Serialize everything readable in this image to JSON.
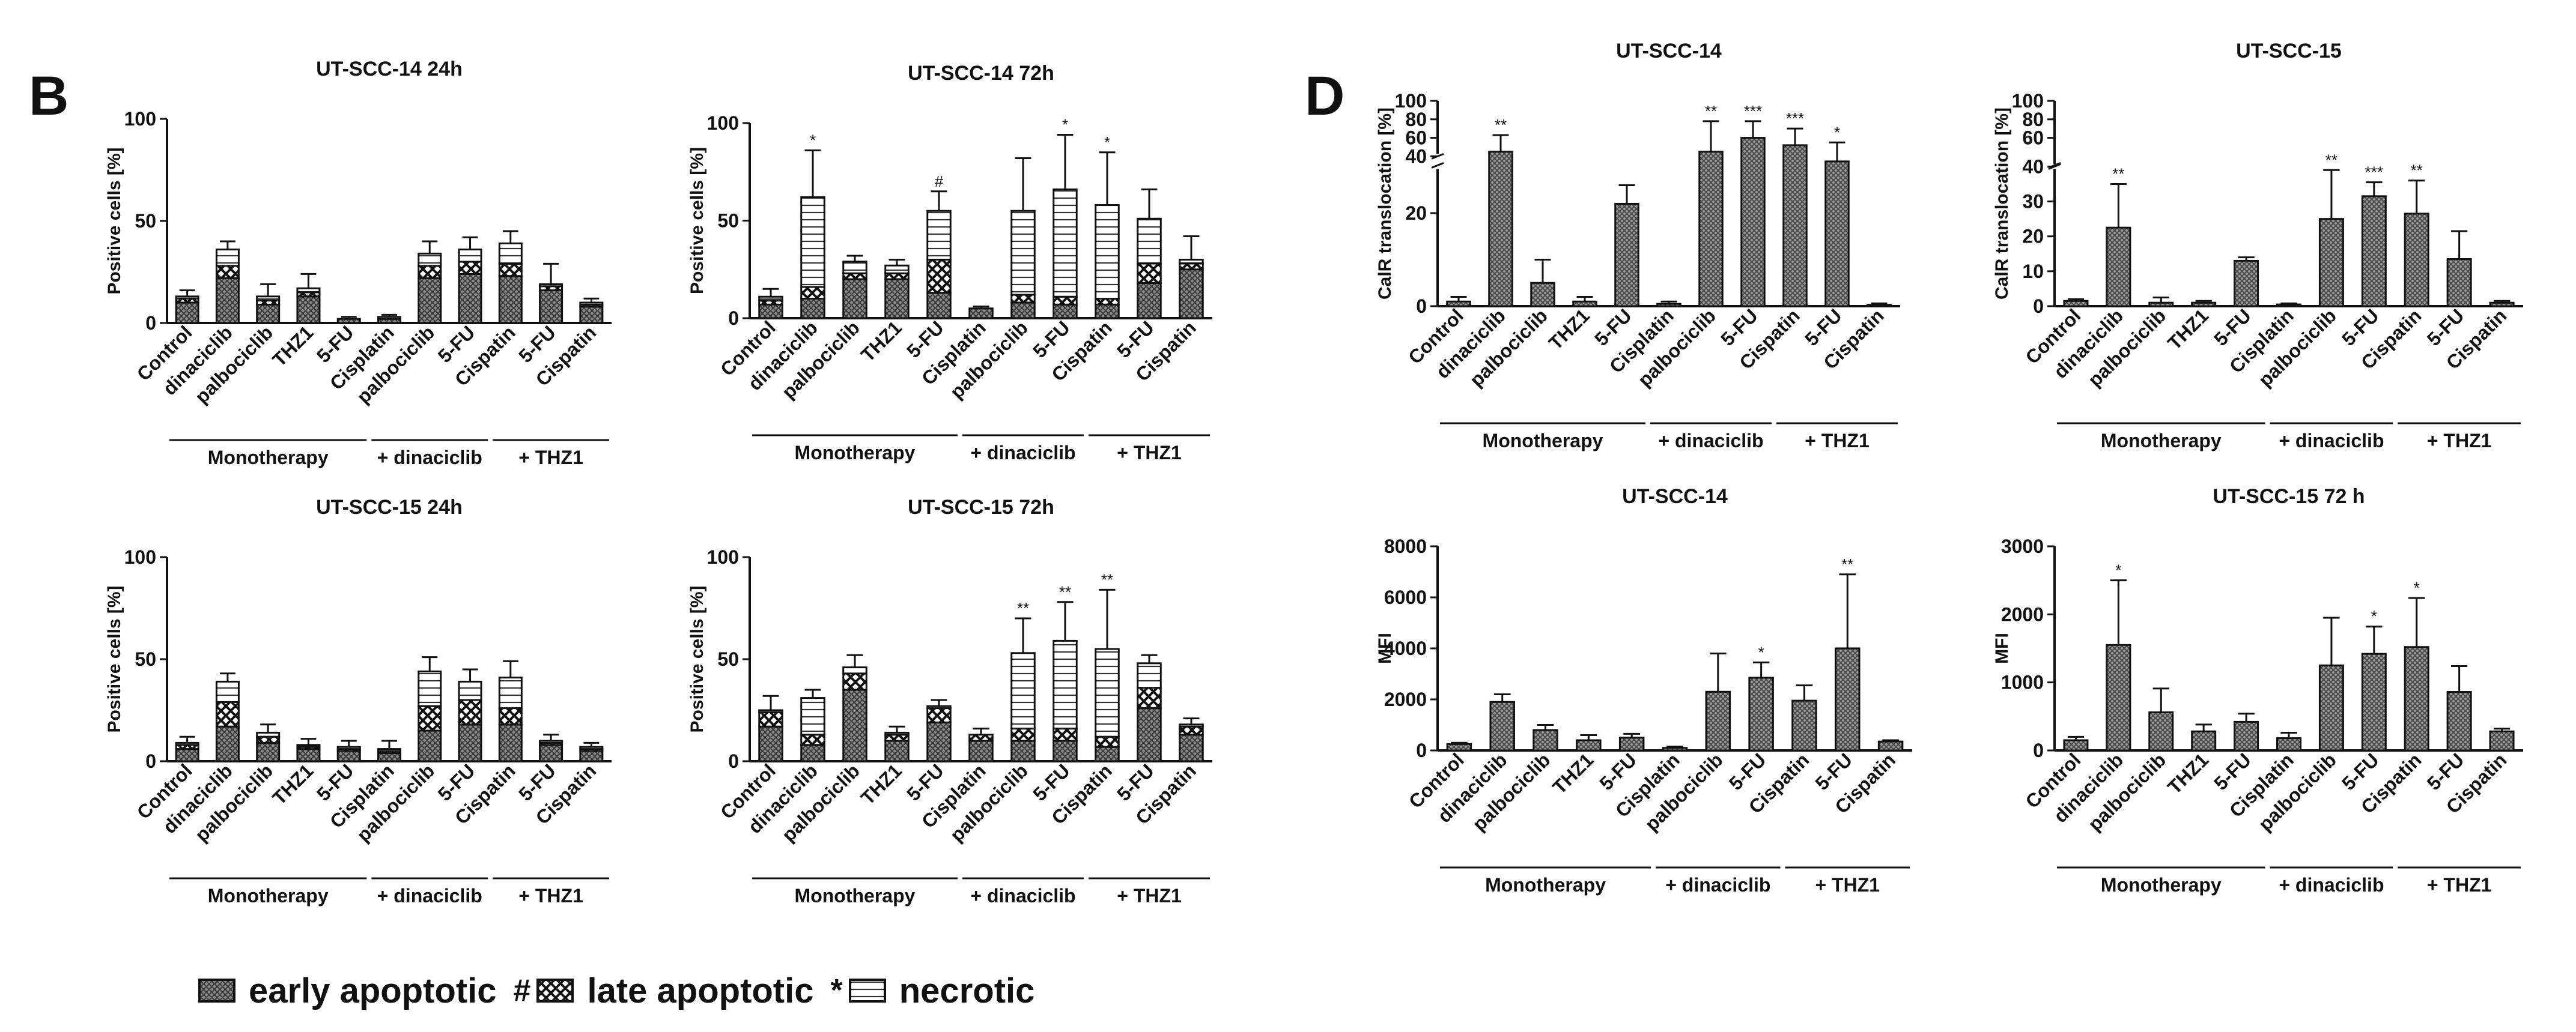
{
  "panel_letters": {
    "left": "B",
    "right": "D"
  },
  "legend": {
    "items": [
      {
        "label": "early apoptotic",
        "pattern": "early"
      },
      {
        "label": "late apoptotic",
        "pattern": "late"
      },
      {
        "label": "necrotic",
        "pattern": "necrotic"
      }
    ],
    "separators": [
      "#",
      "*"
    ]
  },
  "chart_data": [
    {
      "id": "b1",
      "type": "bar",
      "stacked": true,
      "title": "UT-SCC-14 24h",
      "ylabel": "Positive cells [%]",
      "ylim": [
        0,
        100
      ],
      "yticks": [
        0,
        50,
        100
      ],
      "categories": [
        "Control",
        "dinaciclib",
        "palbociclib",
        "THZ1",
        "5-FU",
        "Cisplatin",
        "palbociclib",
        "5-FU",
        "Cispatin",
        "5-FU",
        "Cispatin"
      ],
      "series": [
        {
          "name": "early apoptotic",
          "values": [
            10,
            22,
            9,
            13,
            2,
            2,
            22,
            24,
            23,
            16,
            8
          ]
        },
        {
          "name": "late apoptotic",
          "values": [
            2,
            6,
            2,
            2,
            0,
            0,
            6,
            6,
            6,
            2,
            1
          ]
        },
        {
          "name": "necrotic",
          "values": [
            1,
            8,
            2,
            2,
            0,
            1,
            6,
            6,
            10,
            1,
            1
          ]
        }
      ],
      "errors": [
        3,
        4,
        6,
        7,
        1,
        1,
        6,
        6,
        6,
        10,
        2
      ],
      "annotations": [],
      "groups": [
        {
          "label": "Monotherapy",
          "from": 0,
          "to": 4
        },
        {
          "label": "+ dinaciclib",
          "from": 5,
          "to": 7
        },
        {
          "label": "+ THZ1",
          "from": 8,
          "to": 10
        }
      ]
    },
    {
      "id": "b2",
      "type": "bar",
      "stacked": true,
      "title": "UT-SCC-14 72h",
      "ylabel": "Positive cells [%]",
      "ylim": [
        0,
        100
      ],
      "yticks": [
        0,
        50,
        100
      ],
      "categories": [
        "Control",
        "dinaciclib",
        "palbociclib",
        "THZ1",
        "5-FU",
        "Cisplatin",
        "palbociclib",
        "5-FU",
        "Cispatin",
        "5-FU",
        "Cispatin"
      ],
      "series": [
        {
          "name": "early apoptotic",
          "values": [
            7,
            10,
            20,
            20,
            13,
            5,
            8,
            7,
            7,
            18,
            25
          ]
        },
        {
          "name": "late apoptotic",
          "values": [
            2,
            6,
            3,
            3,
            17,
            0,
            4,
            4,
            3,
            10,
            3
          ]
        },
        {
          "name": "necrotic",
          "values": [
            2,
            46,
            6,
            4,
            25,
            0,
            43,
            55,
            48,
            23,
            2
          ]
        }
      ],
      "errors": [
        4,
        24,
        3,
        3,
        10,
        1,
        27,
        28,
        27,
        15,
        12
      ],
      "annotations": [
        "",
        "*",
        "",
        "",
        "#",
        "",
        "",
        "*",
        "*",
        "",
        ""
      ],
      "groups": [
        {
          "label": "Monotherapy",
          "from": 0,
          "to": 4
        },
        {
          "label": "+ dinaciclib",
          "from": 5,
          "to": 7
        },
        {
          "label": "+ THZ1",
          "from": 8,
          "to": 10
        }
      ]
    },
    {
      "id": "b3",
      "type": "bar",
      "stacked": true,
      "title": "UT-SCC-15 24h",
      "ylabel": "Positive cells [%]",
      "ylim": [
        0,
        100
      ],
      "yticks": [
        0,
        50,
        100
      ],
      "categories": [
        "Control",
        "dinaciclib",
        "palbociclib",
        "THZ1",
        "5-FU",
        "Cisplatin",
        "palbociclib",
        "5-FU",
        "Cispatin",
        "5-FU",
        "Cispatin"
      ],
      "series": [
        {
          "name": "early apoptotic",
          "values": [
            6,
            17,
            9,
            6,
            5,
            4,
            15,
            18,
            18,
            8,
            5
          ]
        },
        {
          "name": "late apoptotic",
          "values": [
            2,
            12,
            3,
            1,
            1,
            1,
            12,
            12,
            8,
            1,
            1
          ]
        },
        {
          "name": "necrotic",
          "values": [
            1,
            10,
            2,
            1,
            1,
            1,
            17,
            9,
            15,
            1,
            1
          ]
        }
      ],
      "errors": [
        3,
        4,
        4,
        3,
        3,
        4,
        7,
        6,
        8,
        3,
        2
      ],
      "annotations": [],
      "groups": [
        {
          "label": "Monotherapy",
          "from": 0,
          "to": 4
        },
        {
          "label": "+ dinaciclib",
          "from": 5,
          "to": 7
        },
        {
          "label": "+ THZ1",
          "from": 8,
          "to": 10
        }
      ]
    },
    {
      "id": "b4",
      "type": "bar",
      "stacked": true,
      "title": "UT-SCC-15 72h",
      "ylabel": "Positive cells [%]",
      "ylim": [
        0,
        100
      ],
      "yticks": [
        0,
        50,
        100
      ],
      "categories": [
        "Control",
        "dinaciclib",
        "palbociclib",
        "THZ1",
        "5-FU",
        "Cisplatin",
        "palbociclib",
        "5-FU",
        "Cispatin",
        "5-FU",
        "Cispatin"
      ],
      "series": [
        {
          "name": "early apoptotic",
          "values": [
            17,
            8,
            35,
            10,
            19,
            10,
            10,
            10,
            7,
            26,
            13
          ]
        },
        {
          "name": "late apoptotic",
          "values": [
            7,
            5,
            8,
            3,
            7,
            3,
            6,
            6,
            5,
            10,
            4
          ]
        },
        {
          "name": "necrotic",
          "values": [
            1,
            18,
            3,
            1,
            1,
            0,
            37,
            43,
            43,
            12,
            1
          ]
        }
      ],
      "errors": [
        7,
        4,
        6,
        3,
        3,
        3,
        17,
        19,
        29,
        4,
        3
      ],
      "annotations": [
        "",
        "",
        "",
        "",
        "",
        "",
        "**",
        "**",
        "**",
        "",
        ""
      ],
      "groups": [
        {
          "label": "Monotherapy",
          "from": 0,
          "to": 4
        },
        {
          "label": "+ dinaciclib",
          "from": 5,
          "to": 7
        },
        {
          "label": "+ THZ1",
          "from": 8,
          "to": 10
        }
      ]
    },
    {
      "id": "d1",
      "type": "bar",
      "title": "UT-SCC-14",
      "ylabel": "CalR translocation [%]",
      "ylim": [
        0,
        100
      ],
      "axis_break": [
        30,
        40
      ],
      "yticks": [
        0,
        20,
        40,
        60,
        80,
        100
      ],
      "categories": [
        "Control",
        "dinaciclib",
        "palbociclib",
        "THZ1",
        "5-FU",
        "Cisplatin",
        "palbociclib",
        "5-FU",
        "Cispatin",
        "5-FU",
        "Cispatin"
      ],
      "values": [
        1,
        45,
        5,
        1,
        22,
        0.5,
        45,
        60,
        52,
        35,
        0.3
      ],
      "errors": [
        1,
        18,
        5,
        1,
        4,
        0.5,
        33,
        18,
        18,
        20,
        0.3
      ],
      "annotations": [
        "",
        "**",
        "",
        "",
        "",
        "",
        "**",
        "***",
        "***",
        "*",
        ""
      ],
      "groups": [
        {
          "label": "Monotherapy",
          "from": 0,
          "to": 4
        },
        {
          "label": "+ dinaciclib",
          "from": 5,
          "to": 7
        },
        {
          "label": "+ THZ1",
          "from": 8,
          "to": 10
        }
      ]
    },
    {
      "id": "d2",
      "type": "bar",
      "title": "UT-SCC-15",
      "ylabel": "CalR translocation [%]",
      "ylim": [
        0,
        100
      ],
      "axis_break": [
        40,
        40
      ],
      "yticks": [
        0,
        10,
        20,
        30,
        40,
        60,
        80,
        100
      ],
      "categories": [
        "Control",
        "dinaciclib",
        "palbociclib",
        "THZ1",
        "5-FU",
        "Cisplatin",
        "palbociclib",
        "5-FU",
        "Cispatin",
        "5-FU",
        "Cispatin"
      ],
      "values": [
        1.5,
        22.5,
        1,
        1,
        13,
        0.5,
        25,
        31.5,
        26.5,
        13.5,
        1
      ],
      "errors": [
        0.5,
        12.5,
        1.5,
        0.5,
        1,
        0.3,
        14,
        4,
        9.5,
        8,
        0.5
      ],
      "annotations": [
        "",
        "**",
        "",
        "",
        "",
        "",
        "**",
        "***",
        "**",
        "",
        ""
      ],
      "groups": [
        {
          "label": "Monotherapy",
          "from": 0,
          "to": 4
        },
        {
          "label": "+ dinaciclib",
          "from": 5,
          "to": 7
        },
        {
          "label": "+ THZ1",
          "from": 8,
          "to": 10
        }
      ]
    },
    {
      "id": "d3",
      "type": "bar",
      "title": "UT-SCC-14",
      "ylabel": "MFI",
      "ylim": [
        0,
        8000
      ],
      "yticks": [
        0,
        2000,
        4000,
        6000,
        8000
      ],
      "categories": [
        "Control",
        "dinaciclib",
        "palbociclib",
        "THZ1",
        "5-FU",
        "Cisplatin",
        "palbociclib",
        "5-FU",
        "Cispatin",
        "5-FU",
        "Cispatin"
      ],
      "values": [
        250,
        1900,
        800,
        400,
        500,
        100,
        2300,
        2850,
        1950,
        4000,
        350
      ],
      "errors": [
        50,
        300,
        200,
        200,
        150,
        50,
        1500,
        600,
        600,
        2900,
        50
      ],
      "annotations": [
        "",
        "",
        "",
        "",
        "",
        "",
        "",
        "*",
        "",
        "**",
        ""
      ],
      "groups": [
        {
          "label": "Monotherapy",
          "from": 0,
          "to": 4
        },
        {
          "label": "+ dinaciclib",
          "from": 5,
          "to": 7
        },
        {
          "label": "+ THZ1",
          "from": 8,
          "to": 10
        }
      ]
    },
    {
      "id": "d4",
      "type": "bar",
      "title": "UT-SCC-15 72 h",
      "ylabel": "MFI",
      "ylim": [
        0,
        3000
      ],
      "yticks": [
        0,
        1000,
        2000,
        3000
      ],
      "categories": [
        "Control",
        "dinaciclib",
        "palbociclib",
        "THZ1",
        "5-FU",
        "Cisplatin",
        "palbociclib",
        "5-FU",
        "Cispatin",
        "5-FU",
        "Cispatin"
      ],
      "values": [
        150,
        1550,
        560,
        280,
        420,
        180,
        1250,
        1420,
        1520,
        860,
        280
      ],
      "errors": [
        50,
        950,
        350,
        100,
        120,
        80,
        700,
        400,
        720,
        380,
        40
      ],
      "annotations": [
        "",
        "*",
        "",
        "",
        "",
        "",
        "",
        "*",
        "*",
        "",
        ""
      ],
      "groups": [
        {
          "label": "Monotherapy",
          "from": 0,
          "to": 4
        },
        {
          "label": "+ dinaciclib",
          "from": 5,
          "to": 7
        },
        {
          "label": "+ THZ1",
          "from": 8,
          "to": 10
        }
      ]
    }
  ]
}
